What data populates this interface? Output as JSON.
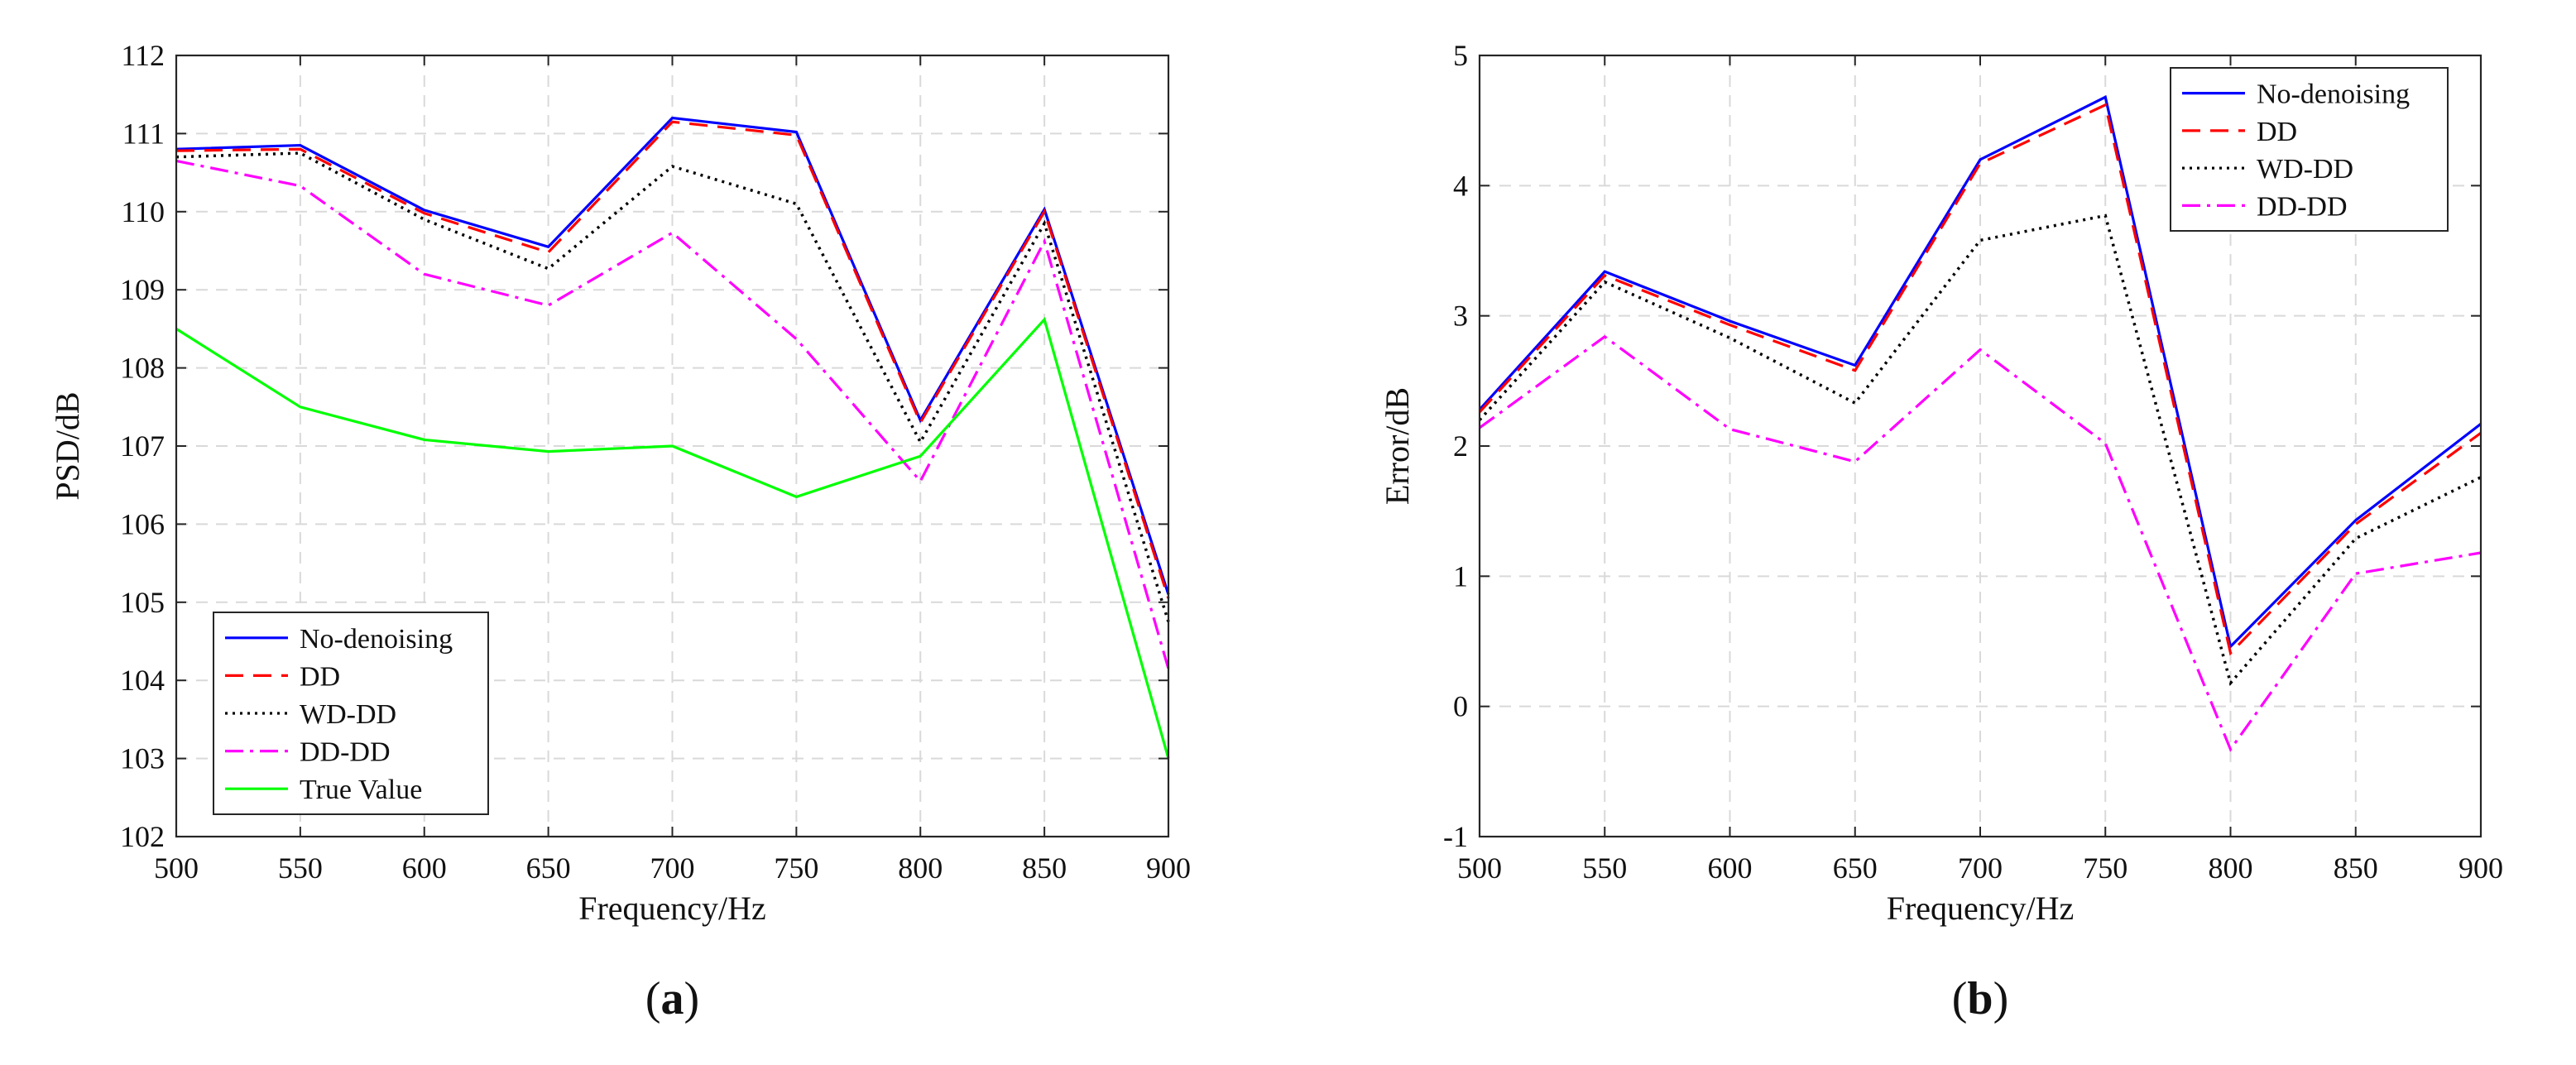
{
  "colors": {
    "no_denoising": "#0000ff",
    "dd": "#ff0000",
    "wd_dd": "#000000",
    "dd_dd": "#ff00ff",
    "true_value": "#00ff00",
    "grid": "#d9d9d9"
  },
  "chart_data": [
    {
      "type": "line",
      "panel_label": "(a)",
      "xlabel": "Frequency/Hz",
      "ylabel": "PSD/dB",
      "xlim": [
        500,
        900
      ],
      "ylim": [
        102,
        112
      ],
      "xticks": [
        500,
        550,
        600,
        650,
        700,
        750,
        800,
        850,
        900
      ],
      "yticks": [
        102,
        103,
        104,
        105,
        106,
        107,
        108,
        109,
        110,
        111,
        112
      ],
      "grid": true,
      "legend_position": "bottom-left",
      "x": [
        500,
        550,
        600,
        650,
        700,
        750,
        800,
        850,
        900
      ],
      "series": [
        {
          "name": "No-denoising",
          "color_key": "no_denoising",
          "dash": "solid",
          "values": [
            110.8,
            110.85,
            110.02,
            109.55,
            111.2,
            111.02,
            107.33,
            110.03,
            105.1
          ]
        },
        {
          "name": "DD",
          "color_key": "dd",
          "dash": "dashed",
          "values": [
            110.78,
            110.8,
            109.98,
            109.48,
            111.15,
            110.98,
            107.3,
            110.0,
            105.05
          ]
        },
        {
          "name": "WD-DD",
          "color_key": "wd_dd",
          "dash": "dotted",
          "values": [
            110.7,
            110.75,
            109.9,
            109.27,
            110.58,
            110.1,
            107.05,
            109.85,
            104.75
          ]
        },
        {
          "name": "DD-DD",
          "color_key": "dd_dd",
          "dash": "dashdot",
          "values": [
            110.65,
            110.33,
            109.2,
            108.8,
            109.73,
            108.37,
            106.55,
            109.62,
            104.15
          ]
        },
        {
          "name": "True Value",
          "color_key": "true_value",
          "dash": "solid",
          "values": [
            108.5,
            107.5,
            107.08,
            106.93,
            107.0,
            106.35,
            106.87,
            108.62,
            103.0
          ]
        }
      ]
    },
    {
      "type": "line",
      "panel_label": "(b)",
      "xlabel": "Frequency/Hz",
      "ylabel": "Error/dB",
      "xlim": [
        500,
        900
      ],
      "ylim": [
        -1,
        5
      ],
      "xticks": [
        500,
        550,
        600,
        650,
        700,
        750,
        800,
        850,
        900
      ],
      "yticks": [
        -1,
        0,
        1,
        2,
        3,
        4,
        5
      ],
      "grid": true,
      "legend_position": "top-right",
      "x": [
        500,
        550,
        600,
        650,
        700,
        750,
        800,
        850,
        900
      ],
      "series": [
        {
          "name": "No-denoising",
          "color_key": "no_denoising",
          "dash": "solid",
          "values": [
            2.28,
            3.34,
            2.96,
            2.62,
            4.2,
            4.68,
            0.46,
            1.43,
            2.17
          ]
        },
        {
          "name": "DD",
          "color_key": "dd",
          "dash": "dashed",
          "values": [
            2.26,
            3.31,
            2.93,
            2.58,
            4.17,
            4.62,
            0.41,
            1.4,
            2.1
          ]
        },
        {
          "name": "WD-DD",
          "color_key": "wd_dd",
          "dash": "dotted",
          "values": [
            2.2,
            3.26,
            2.83,
            2.33,
            3.58,
            3.77,
            0.18,
            1.29,
            1.76
          ]
        },
        {
          "name": "DD-DD",
          "color_key": "dd_dd",
          "dash": "dashdot",
          "values": [
            2.14,
            2.84,
            2.13,
            1.88,
            2.74,
            2.02,
            -0.33,
            1.02,
            1.18
          ]
        }
      ]
    }
  ]
}
